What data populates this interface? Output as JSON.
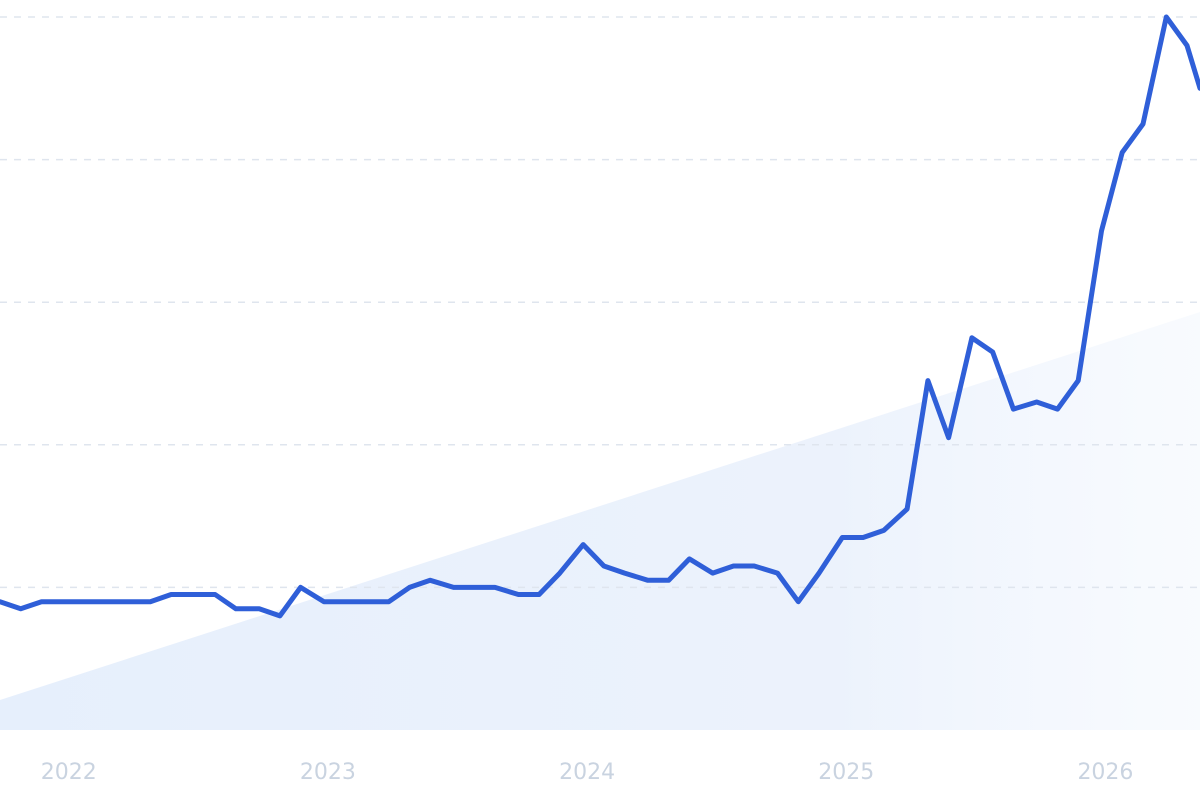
{
  "chart_data": {
    "type": "line",
    "title": "",
    "xlabel": "",
    "ylabel": "",
    "x_ticks": [
      "2022",
      "2023",
      "2024",
      "2025",
      "2026"
    ],
    "x_tick_values": [
      2022.0,
      2023.0,
      2024.0,
      2025.0,
      2026.0
    ],
    "xlim": [
      2021.92,
      2026.55
    ],
    "ylim": [
      0,
      100
    ],
    "y_gridlines": [
      20,
      40,
      60,
      80,
      100
    ],
    "grid": true,
    "legend": "none",
    "y_labels_visible": false,
    "colors": {
      "line": "#2f5fd8",
      "grid": "#dfe5ee",
      "tick_text": "#c9d3e0",
      "area_tint": "#e3edfb"
    },
    "series": [
      {
        "x": [
          2021.92,
          2022.0,
          2022.08,
          2022.17,
          2022.25,
          2022.33,
          2022.42,
          2022.5,
          2022.58,
          2022.67,
          2022.75,
          2022.83,
          2022.92,
          2023.0,
          2023.08,
          2023.17,
          2023.25,
          2023.33,
          2023.42,
          2023.5,
          2023.58,
          2023.67,
          2023.75,
          2023.83,
          2023.92,
          2024.0,
          2024.08,
          2024.17,
          2024.25,
          2024.33,
          2024.42,
          2024.5,
          2024.58,
          2024.67,
          2024.75,
          2024.83,
          2024.92,
          2025.0,
          2025.08,
          2025.17,
          2025.25,
          2025.33,
          2025.42,
          2025.5,
          2025.58,
          2025.67,
          2025.75,
          2025.83,
          2025.92,
          2026.0,
          2026.08,
          2026.17,
          2026.25,
          2026.33,
          2026.42,
          2026.5,
          2026.55
        ],
        "y": [
          18,
          17,
          18,
          18,
          18,
          18,
          18,
          18,
          19,
          19,
          19,
          17,
          17,
          16,
          20,
          18,
          18,
          18,
          18,
          20,
          21,
          20,
          20,
          20,
          19,
          19,
          22,
          26,
          23,
          22,
          21,
          21,
          24,
          22,
          23,
          23,
          22,
          18,
          22,
          27,
          27,
          28,
          31,
          49,
          41,
          55,
          53,
          45,
          46,
          45,
          49,
          70,
          81,
          85,
          100,
          96,
          90
        ]
      }
    ]
  }
}
